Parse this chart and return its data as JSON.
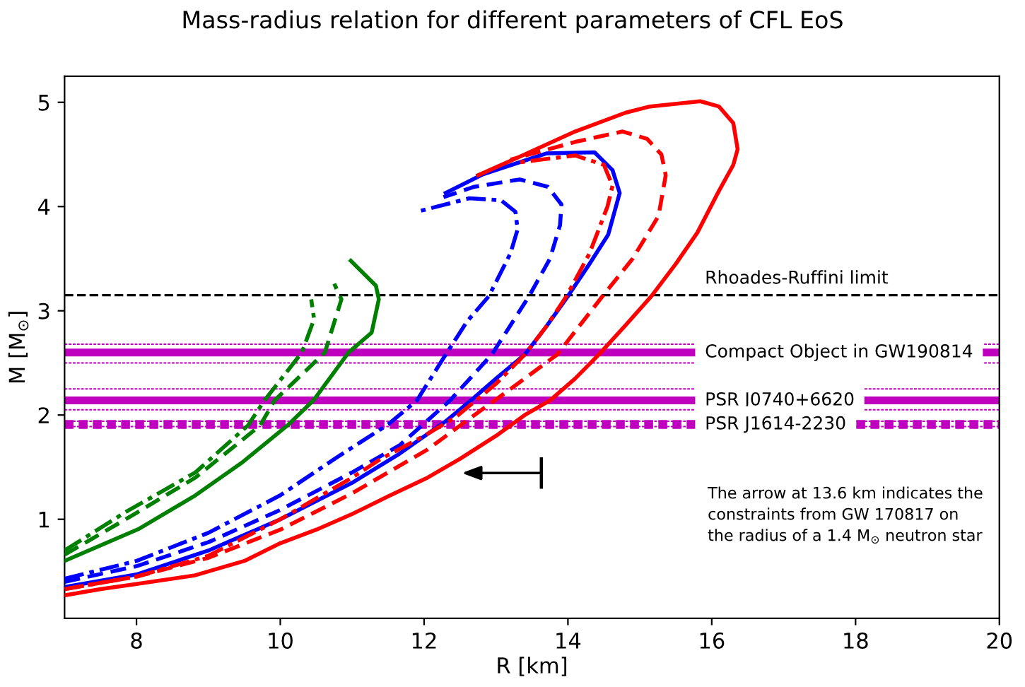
{
  "chart_data": {
    "type": "line",
    "title": "Mass-radius relation for different parameters of CFL EoS",
    "xlabel": "R [km]",
    "ylabel": "M [M$_{⊙}$]",
    "xlim": [
      7,
      20
    ],
    "ylim": [
      0.05,
      5.25
    ],
    "xticks": [
      8,
      10,
      12,
      14,
      16,
      18,
      20
    ],
    "yticks": [
      1,
      2,
      3,
      4,
      5
    ],
    "grid": false,
    "legend": false,
    "marker": "none",
    "series": [
      {
        "color": "#008000",
        "line_style": "solid",
        "x": [
          7.0,
          8.04,
          8.82,
          9.46,
          10.1,
          10.46,
          10.95,
          11.27,
          11.37,
          11.33,
          10.98
        ],
        "values": [
          0.6,
          0.91,
          1.23,
          1.54,
          1.9,
          2.14,
          2.6,
          2.79,
          3.11,
          3.24,
          3.48
        ]
      },
      {
        "color": "#008000",
        "line_style": "dashed",
        "x": [
          7.0,
          7.85,
          8.82,
          9.72,
          9.92,
          10.62,
          10.85,
          10.75
        ],
        "values": [
          0.66,
          1.0,
          1.4,
          1.9,
          2.14,
          2.6,
          3.11,
          3.26
        ]
      },
      {
        "color": "#008000",
        "line_style": "dashdot",
        "x": [
          7.0,
          7.85,
          8.82,
          9.55,
          9.78,
          10.3,
          10.47,
          10.43
        ],
        "values": [
          0.7,
          1.07,
          1.45,
          1.9,
          2.14,
          2.6,
          2.92,
          3.11
        ]
      },
      {
        "color": "#0000ff",
        "line_style": "solid",
        "x": [
          7.0,
          8.0,
          9.0,
          10.0,
          11.0,
          11.66,
          12.3,
          12.65,
          13.0,
          13.4,
          13.7,
          14.0,
          14.3,
          14.56,
          14.72,
          14.62,
          14.37,
          13.7,
          12.82,
          12.3
        ],
        "values": [
          0.35,
          0.47,
          0.7,
          1.0,
          1.35,
          1.63,
          1.94,
          2.14,
          2.35,
          2.58,
          2.85,
          3.14,
          3.45,
          3.73,
          4.13,
          4.35,
          4.52,
          4.51,
          4.31,
          4.13
        ]
      },
      {
        "color": "#0000ff",
        "line_style": "dashed",
        "x": [
          7.0,
          8.0,
          9.0,
          10.0,
          11.0,
          11.66,
          12.36,
          12.94,
          13.46,
          13.75,
          13.89,
          13.91,
          13.72,
          13.33,
          12.7,
          12.27
        ],
        "values": [
          0.4,
          0.55,
          0.78,
          1.09,
          1.45,
          1.71,
          2.14,
          2.58,
          3.14,
          3.5,
          3.82,
          4.02,
          4.19,
          4.26,
          4.19,
          4.09
        ]
      },
      {
        "color": "#0000ff",
        "line_style": "dashdot",
        "x": [
          7.0,
          8.0,
          9.0,
          10.0,
          10.8,
          11.5,
          11.9,
          12.3,
          12.6,
          12.9,
          13.2,
          13.3,
          13.27,
          13.07,
          12.63,
          11.9
        ],
        "values": [
          0.43,
          0.6,
          0.87,
          1.23,
          1.6,
          1.91,
          2.14,
          2.58,
          2.9,
          3.14,
          3.55,
          3.78,
          3.95,
          4.06,
          4.08,
          3.95
        ]
      },
      {
        "color": "#ff0000",
        "line_style": "solid",
        "x": [
          7.0,
          7.5,
          8.0,
          8.8,
          9.5,
          10.0,
          10.5,
          11.0,
          11.5,
          12.05,
          12.5,
          13.0,
          13.4,
          13.75,
          14.1,
          14.43,
          14.8,
          15.16,
          15.5,
          15.8,
          16.1,
          16.3,
          16.36,
          16.3,
          16.1,
          15.84,
          15.14,
          14.8,
          14.1,
          13.4,
          12.75
        ],
        "values": [
          0.27,
          0.33,
          0.38,
          0.46,
          0.6,
          0.77,
          0.9,
          1.05,
          1.22,
          1.4,
          1.58,
          1.8,
          2.0,
          2.14,
          2.35,
          2.58,
          2.86,
          3.14,
          3.45,
          3.75,
          4.15,
          4.4,
          4.55,
          4.8,
          4.96,
          5.01,
          4.96,
          4.9,
          4.72,
          4.5,
          4.3
        ]
      },
      {
        "color": "#ff0000",
        "line_style": "dashed",
        "x": [
          7.0,
          8.0,
          9.0,
          10.0,
          11.0,
          12.05,
          12.7,
          13.3,
          13.85,
          14.47,
          14.9,
          15.26,
          15.36,
          15.3,
          15.1,
          14.76,
          14.1,
          13.2
        ],
        "values": [
          0.33,
          0.45,
          0.63,
          0.9,
          1.25,
          1.67,
          2.0,
          2.3,
          2.58,
          3.13,
          3.5,
          3.91,
          4.3,
          4.5,
          4.65,
          4.72,
          4.62,
          4.45
        ]
      },
      {
        "color": "#ff0000",
        "line_style": "dashdot",
        "x": [
          7.0,
          8.0,
          9.0,
          10.0,
          11.0,
          11.4,
          12.0,
          12.44,
          13.0,
          13.4,
          13.7,
          13.98,
          14.3,
          14.55,
          14.62,
          14.5,
          14.1,
          13.27
        ],
        "values": [
          0.33,
          0.45,
          0.65,
          1.0,
          1.4,
          1.58,
          1.8,
          1.98,
          2.3,
          2.58,
          2.85,
          3.14,
          3.55,
          4.0,
          4.2,
          4.4,
          4.49,
          4.42
        ]
      }
    ],
    "ref_lines": [
      {
        "axis": "y",
        "value": 3.15,
        "label": "Rhoades-Ruffini limit",
        "color": "#000000",
        "line_style": "dashed"
      },
      {
        "axis": "y",
        "value": 2.6,
        "label": "Compact Object in GW190814",
        "color": "#bf00bf",
        "line_style": "solid"
      },
      {
        "axis": "y",
        "value": 2.14,
        "label": "PSR J0740+6620",
        "color": "#bf00bf",
        "line_style": "solid"
      },
      {
        "axis": "y",
        "value": 1.91,
        "label": "PSR J1614-2230",
        "color": "#bf00bf",
        "line_style": "dotted"
      },
      {
        "axis": "y",
        "value": 2.68,
        "color": "#bf00bf",
        "line_style": "dotted"
      },
      {
        "axis": "y",
        "value": 2.5,
        "color": "#bf00bf",
        "line_style": "dotted"
      },
      {
        "axis": "y",
        "value": 2.25,
        "color": "#bf00bf",
        "line_style": "dotted"
      },
      {
        "axis": "y",
        "value": 2.05,
        "color": "#bf00bf",
        "line_style": "dotted"
      },
      {
        "axis": "y",
        "value": 1.94,
        "color": "#bf00bf",
        "line_style": "dotted"
      },
      {
        "axis": "y",
        "value": 1.89,
        "color": "#bf00bf",
        "line_style": "dotted"
      }
    ],
    "annotations": [
      "The arrow at 13.6 km indicates the\nconstraints from GW 170817 on\nthe radius of a 1.4 M$_{⊙}$ neutron star"
    ]
  }
}
